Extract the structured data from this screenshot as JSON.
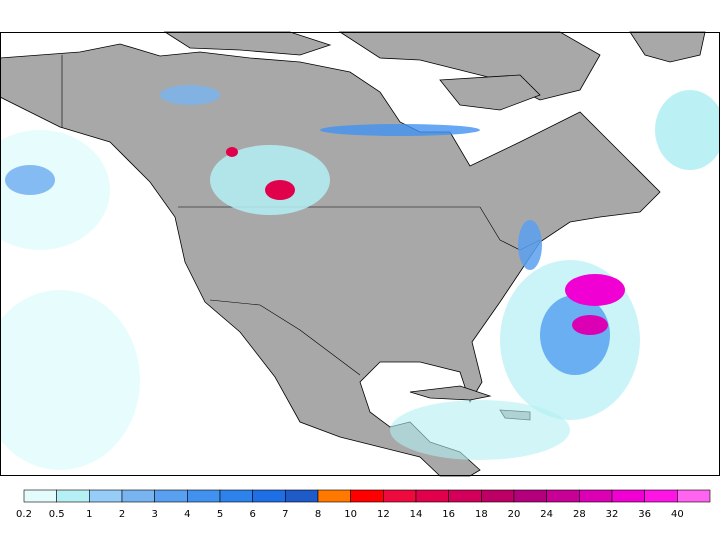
{
  "legend": {
    "levels": [
      0.2,
      0.5,
      1,
      2,
      3,
      4,
      5,
      6,
      7,
      8,
      10,
      12,
      14,
      16,
      18,
      20,
      24,
      28,
      32,
      36,
      40
    ],
    "colors": [
      "#e4fcfc",
      "#b4f0f4",
      "#96cdf8",
      "#78b4f0",
      "#5aa0f0",
      "#4191f0",
      "#2d82eb",
      "#1e6ee6",
      "#1e5ac8",
      "#ff7800",
      "#ff0000",
      "#ee0a3c",
      "#e1004b",
      "#d2005a",
      "#be0064",
      "#b4007d",
      "#c80096",
      "#dc00b4",
      "#f000d2",
      "#ff14e6",
      "#ff64f0"
    ]
  }
}
